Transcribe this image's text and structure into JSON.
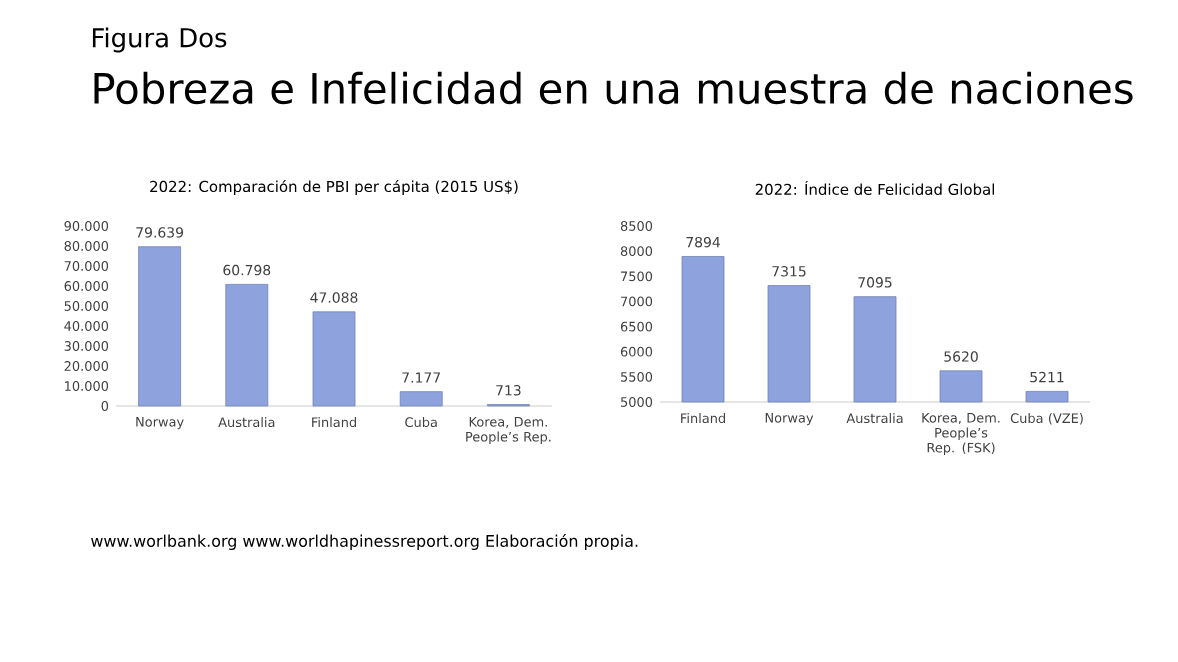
{
  "chart_data": [
    {
      "type": "bar",
      "title": "2022: Comparación  de PBI per cápita  (2015 US$)",
      "categories": [
        "Norway",
        "Australia",
        "Finland",
        "Cuba",
        "Korea, Dem. People’s Rep."
      ],
      "values": [
        79639,
        60798,
        47088,
        7177,
        713
      ],
      "value_labels": [
        "79.639",
        "60.798",
        "47.088",
        "7.177",
        "713"
      ],
      "color": "#8ea2dd",
      "ylim": [
        0,
        90000
      ],
      "yticks": [
        {
          "value": 0,
          "label": "0"
        },
        {
          "value": 10000,
          "label": "10.000"
        },
        {
          "value": 20000,
          "label": "20.000"
        },
        {
          "value": 30000,
          "label": "30.000"
        },
        {
          "value": 40000,
          "label": "40.000"
        },
        {
          "value": 50000,
          "label": "50.000"
        },
        {
          "value": 60000,
          "label": "60.000"
        },
        {
          "value": 70000,
          "label": "70.000"
        },
        {
          "value": 80000,
          "label": "80.000"
        },
        {
          "value": 90000,
          "label": "90.000"
        }
      ],
      "grid": false,
      "annotations": [
        "Figura Dos",
        "Pobreza e Infelicidad en una muestra de naciones",
        "www.worlbank.org www.worldhapinessreport.org Elaboración propia."
      ]
    },
    {
      "type": "bar",
      "title": "2022: Índice de Felicidad  Global",
      "categories": [
        "Finland",
        "Norway",
        "Australia",
        "Korea, Dem. People’s Rep. (FSK)",
        "Cuba (VZE)"
      ],
      "values": [
        7894,
        7315,
        7095,
        5620,
        5211
      ],
      "data_labels": true,
      "color": "#8ea2dd",
      "ylim": [
        5000,
        8500
      ],
      "yticks": [
        5000,
        5500,
        6000,
        6500,
        7000,
        7500,
        8000,
        8500
      ],
      "grid": false
    }
  ]
}
